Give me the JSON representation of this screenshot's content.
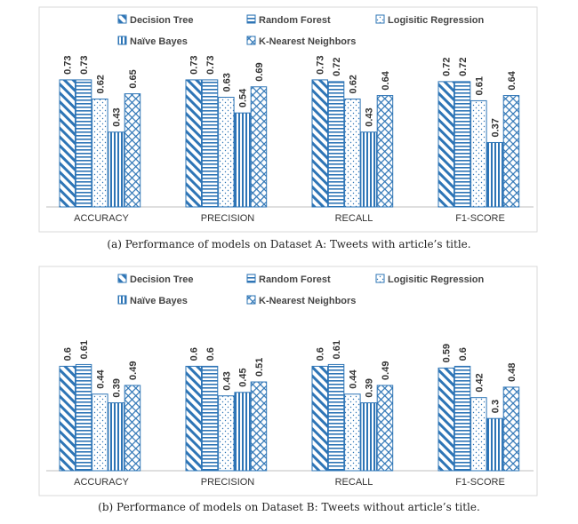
{
  "chart_data": [
    {
      "type": "bar",
      "caption": "(a) Performance of models on Dataset A: Tweets with article’s title.",
      "categories": [
        "ACCURACY",
        "PRECISION",
        "RECALL",
        "F1-SCORE"
      ],
      "series": [
        {
          "name": "Decision Tree",
          "values": [
            0.73,
            0.73,
            0.73,
            0.72
          ]
        },
        {
          "name": "Random Forest",
          "values": [
            0.73,
            0.73,
            0.72,
            0.72
          ]
        },
        {
          "name": "Logisitic Regression",
          "values": [
            0.62,
            0.63,
            0.62,
            0.61
          ]
        },
        {
          "name": "Naïve Bayes",
          "values": [
            0.43,
            0.54,
            0.43,
            0.37
          ]
        },
        {
          "name": "K-Nearest Neighbors",
          "values": [
            0.65,
            0.69,
            0.64,
            0.64
          ]
        }
      ],
      "ylim": [
        0,
        1
      ],
      "grid": false,
      "legend_position": "top",
      "colors": {
        "bar": "#2e75b6",
        "border": "#d9d9d9",
        "baseline": "#bfbfbf"
      }
    },
    {
      "type": "bar",
      "caption": "(b) Performance of models on Dataset B: Tweets without article’s title.",
      "categories": [
        "ACCURACY",
        "PRECISION",
        "RECALL",
        "F1-SCORE"
      ],
      "series": [
        {
          "name": "Decision Tree",
          "values": [
            0.6,
            0.6,
            0.6,
            0.59
          ]
        },
        {
          "name": "Random Forest",
          "values": [
            0.61,
            0.6,
            0.61,
            0.6
          ]
        },
        {
          "name": "Logisitic Regression",
          "values": [
            0.44,
            0.43,
            0.44,
            0.42
          ]
        },
        {
          "name": "Naïve Bayes",
          "values": [
            0.39,
            0.45,
            0.39,
            0.3
          ]
        },
        {
          "name": "K-Nearest Neighbors",
          "values": [
            0.49,
            0.51,
            0.49,
            0.48
          ]
        }
      ],
      "ylim": [
        0,
        1
      ],
      "grid": false,
      "legend_position": "top",
      "colors": {
        "bar": "#2e75b6",
        "border": "#d9d9d9",
        "baseline": "#bfbfbf"
      }
    }
  ]
}
